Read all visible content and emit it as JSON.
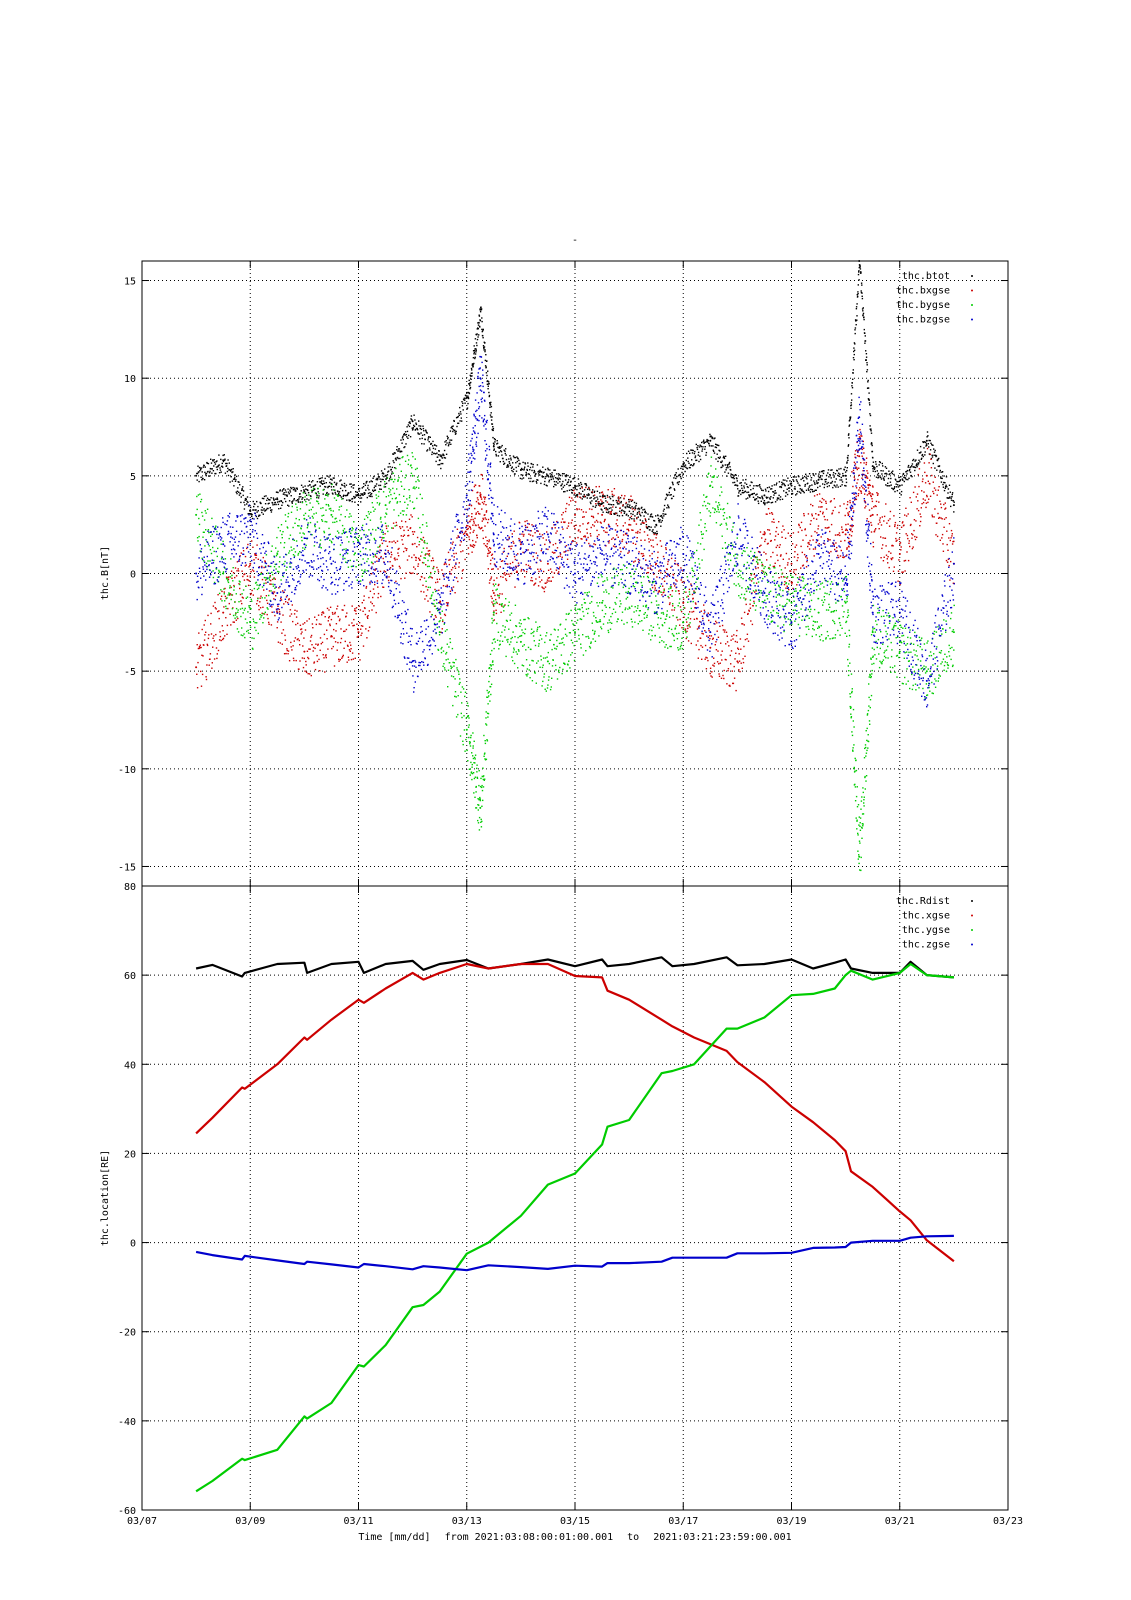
{
  "page_title": "-",
  "footer": {
    "time_label": "Time [mm/dd]",
    "from_word": "from",
    "from_value": "2021:03:08:00:01:00.001",
    "to_word": "to",
    "to_value": "2021:03:21:23:59:00.001"
  },
  "x_ticks": [
    "03/07",
    "03/09",
    "03/11",
    "03/13",
    "03/15",
    "03/17",
    "03/19",
    "03/21",
    "03/23"
  ],
  "chart_data": [
    {
      "type": "scatter",
      "title": "",
      "ylabel": "thc.B[nT]",
      "xlabel": "Time [mm/dd]",
      "xlim": [
        7,
        23
      ],
      "ylim": [
        -16,
        16
      ],
      "y_ticks": [
        15,
        10,
        5,
        0,
        -5,
        -10,
        -15
      ],
      "grid": true,
      "legend_position": "top-right",
      "x": [
        8.0,
        8.5,
        9.0,
        9.5,
        10.0,
        10.5,
        11.0,
        11.5,
        12.0,
        12.5,
        13.0,
        13.25,
        13.5,
        14.0,
        14.5,
        15.0,
        15.5,
        16.0,
        16.5,
        17.0,
        17.5,
        18.0,
        18.5,
        19.0,
        19.5,
        20.0,
        20.25,
        20.5,
        21.0,
        21.5,
        22.0
      ],
      "series": [
        {
          "name": "thc.btot",
          "color": "#000000",
          "values": [
            5.0,
            5.8,
            3.2,
            3.8,
            4.2,
            4.6,
            4.0,
            5.0,
            7.8,
            5.8,
            9.0,
            13.5,
            6.5,
            5.3,
            5.0,
            4.5,
            3.6,
            3.4,
            2.5,
            5.6,
            6.8,
            4.5,
            4.0,
            4.5,
            4.8,
            5.0,
            16.0,
            5.5,
            4.5,
            6.8,
            3.5
          ]
        },
        {
          "name": "thc.bxgse",
          "color": "#cc0000",
          "values": [
            -4.8,
            -2.0,
            0.5,
            -2.0,
            -4.0,
            -3.2,
            -3.0,
            1.0,
            1.5,
            -1.5,
            2.0,
            4.0,
            -1.0,
            1.5,
            0.5,
            3.0,
            3.0,
            2.5,
            0.5,
            -1.5,
            -3.8,
            -4.5,
            2.0,
            0.5,
            3.0,
            2.0,
            6.0,
            3.0,
            1.0,
            5.0,
            0.5
          ]
        },
        {
          "name": "thc.bygse",
          "color": "#00cc00",
          "values": [
            3.0,
            0.0,
            -2.5,
            1.0,
            2.8,
            3.0,
            1.0,
            3.5,
            5.0,
            -3.0,
            -8.0,
            -12.0,
            -2.0,
            -3.5,
            -4.5,
            -3.0,
            -1.5,
            -1.0,
            -2.0,
            -2.5,
            4.5,
            0.5,
            -1.0,
            -1.5,
            -2.0,
            -1.5,
            -14.5,
            -3.0,
            -4.0,
            -5.0,
            -3.0
          ]
        },
        {
          "name": "thc.bzgse",
          "color": "#0000cc",
          "values": [
            0.0,
            1.5,
            2.0,
            -1.0,
            1.5,
            0.5,
            1.0,
            1.0,
            -4.5,
            -2.0,
            4.0,
            10.0,
            2.0,
            1.0,
            2.0,
            0.0,
            1.0,
            0.5,
            -0.5,
            1.0,
            -3.0,
            2.0,
            -1.0,
            -2.5,
            1.0,
            -0.5,
            8.0,
            -2.0,
            -2.0,
            -5.5,
            0.5
          ]
        }
      ]
    },
    {
      "type": "line",
      "title": "",
      "ylabel": "thc.location[RE]",
      "xlabel": "Time [mm/dd]",
      "xlim": [
        7,
        23
      ],
      "ylim": [
        -60,
        80
      ],
      "y_ticks": [
        80,
        60,
        40,
        20,
        0,
        -20,
        -40,
        -60
      ],
      "grid": true,
      "legend_position": "top-right",
      "x": [
        8.0,
        8.3,
        8.85,
        8.9,
        9.5,
        10.0,
        10.05,
        10.5,
        11.0,
        11.1,
        11.5,
        12.0,
        12.2,
        12.5,
        13.0,
        13.4,
        14.0,
        14.5,
        15.0,
        15.5,
        15.6,
        16.0,
        16.6,
        16.8,
        17.2,
        17.8,
        18.0,
        18.5,
        19.0,
        19.4,
        19.8,
        20.0,
        20.1,
        20.5,
        21.0,
        21.2,
        21.5,
        22.0
      ],
      "series": [
        {
          "name": "thc.Rdist",
          "color": "#000000",
          "values": [
            61.5,
            62.3,
            59.7,
            60.5,
            62.5,
            62.8,
            60.5,
            62.5,
            63.0,
            60.5,
            62.5,
            63.2,
            61.2,
            62.5,
            63.4,
            61.5,
            62.5,
            63.5,
            62.0,
            63.5,
            62.0,
            62.5,
            64.0,
            62.0,
            62.5,
            64.0,
            62.2,
            62.5,
            63.5,
            61.5,
            62.8,
            63.5,
            61.5,
            60.5,
            60.5,
            63.0,
            60.0,
            59.5
          ]
        },
        {
          "name": "thc.xgse",
          "color": "#cc0000",
          "values": [
            24.5,
            28.0,
            34.8,
            34.5,
            40.0,
            46.0,
            45.5,
            50.0,
            54.5,
            53.8,
            57.0,
            60.5,
            59.0,
            60.5,
            62.5,
            61.5,
            62.5,
            62.5,
            59.8,
            59.5,
            56.5,
            54.5,
            50.0,
            48.5,
            46.0,
            43.0,
            40.5,
            36.0,
            30.5,
            27.0,
            23.0,
            20.5,
            16.0,
            12.5,
            7.0,
            5.0,
            0.5,
            -4.2
          ]
        },
        {
          "name": "thc.ygse",
          "color": "#00cc00",
          "values": [
            -55.8,
            -53.5,
            -48.5,
            -48.8,
            -46.5,
            -39.0,
            -39.5,
            -36.0,
            -27.5,
            -27.8,
            -23.0,
            -14.5,
            -14.0,
            -11.0,
            -2.5,
            0.0,
            6.0,
            13.0,
            15.5,
            22.0,
            26.0,
            27.5,
            38.0,
            38.5,
            40.0,
            48.0,
            48.0,
            50.5,
            55.5,
            55.8,
            57.0,
            60.0,
            61.0,
            59.0,
            60.5,
            62.5,
            60.0,
            59.5
          ]
        },
        {
          "name": "thc.zgse",
          "color": "#0000cc",
          "values": [
            -2.1,
            -2.8,
            -3.8,
            -3.0,
            -4.0,
            -4.8,
            -4.3,
            -4.9,
            -5.6,
            -4.8,
            -5.3,
            -6.0,
            -5.3,
            -5.6,
            -6.2,
            -5.1,
            -5.5,
            -5.9,
            -5.2,
            -5.4,
            -4.6,
            -4.6,
            -4.3,
            -3.4,
            -3.4,
            -3.4,
            -2.4,
            -2.4,
            -2.3,
            -1.2,
            -1.1,
            -1.0,
            0.0,
            0.4,
            0.4,
            1.1,
            1.4,
            1.5
          ]
        }
      ]
    }
  ]
}
